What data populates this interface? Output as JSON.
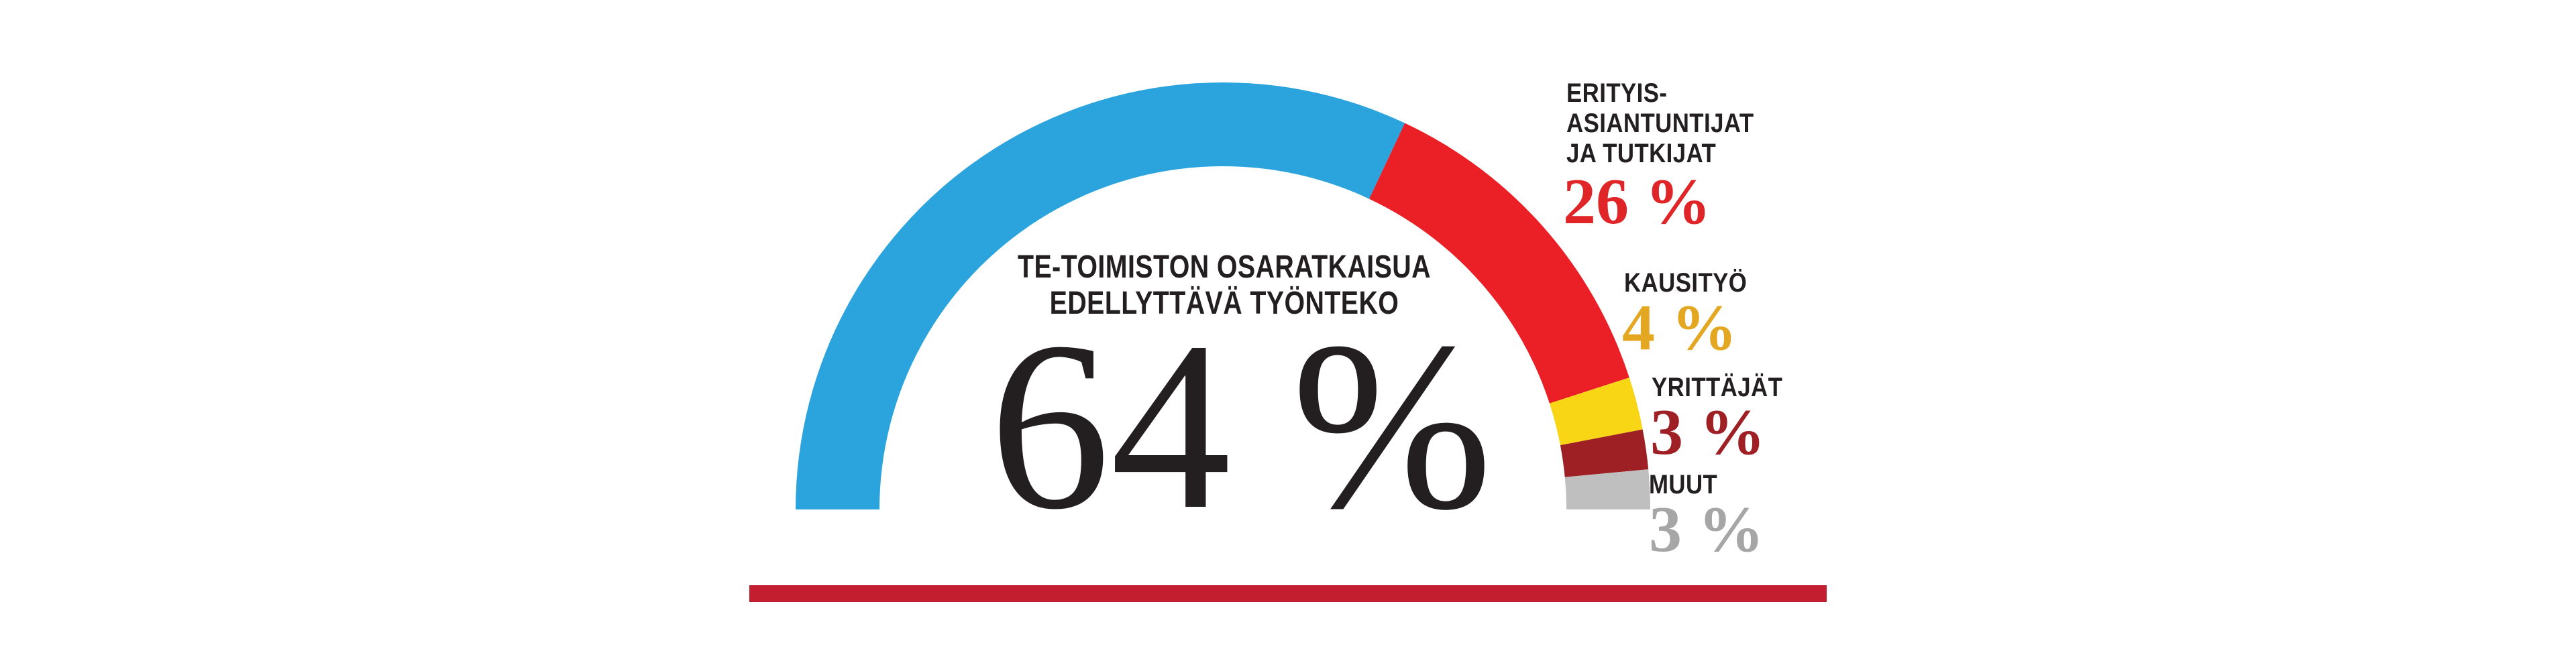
{
  "chart_data": {
    "type": "semi_donut",
    "unit": "%",
    "total": 100,
    "arc": {
      "start_deg": 180,
      "end_deg": 0,
      "direction": "left-to-right-over-top"
    },
    "legend_position": "right",
    "segments": [
      {
        "id": "te-toimiston-osaratkaisua-edellyttava-tyonteko",
        "label": "TE-TOIMISTON OSARATKAISUA EDELLYTTÄVÄ TYÖNTEKO",
        "value": 64,
        "color": "#2BA4DE"
      },
      {
        "id": "erityisasiantuntijat-ja-tutkijat",
        "label": "ERITYIS-ASIANTUNTIJAT JA TUTKIJAT",
        "value": 26,
        "color": "#EB2027"
      },
      {
        "id": "kausityo",
        "label": "KAUSITYÖ",
        "value": 4,
        "color": "#F8D515"
      },
      {
        "id": "yrittajat",
        "label": "YRITTÄJÄT",
        "value": 3,
        "color": "#9E2024"
      },
      {
        "id": "muut",
        "label": "MUUT",
        "value": 3,
        "color": "#BFBFBF"
      }
    ]
  },
  "center": {
    "label_lines": [
      "TE-TOIMISTON OSARATKAISUA",
      "EDELLYTTÄVÄ TYÖNTEKO"
    ],
    "value_text": "64 %",
    "value_color": "#231F20"
  },
  "legend": {
    "items": [
      {
        "id": "erityisasiantuntijat-ja-tutkijat",
        "lines": [
          "ERITYIS-",
          "ASIANTUNTIJAT",
          "JA TUTKIJAT"
        ],
        "value_text": "26 %",
        "value_color": "#E02529"
      },
      {
        "id": "kausityo",
        "lines": [
          "KAUSITYÖ"
        ],
        "value_text": "4 %",
        "value_color": "#E3A722"
      },
      {
        "id": "yrittajat",
        "lines": [
          "YRITTÄJÄT"
        ],
        "value_text": "3 %",
        "value_color": "#9E2024"
      },
      {
        "id": "muut",
        "lines": [
          "MUUT"
        ],
        "value_text": "3 %",
        "value_color": "#A6A6A6"
      }
    ]
  },
  "footer": {
    "bar_color": "#C31E2F"
  }
}
